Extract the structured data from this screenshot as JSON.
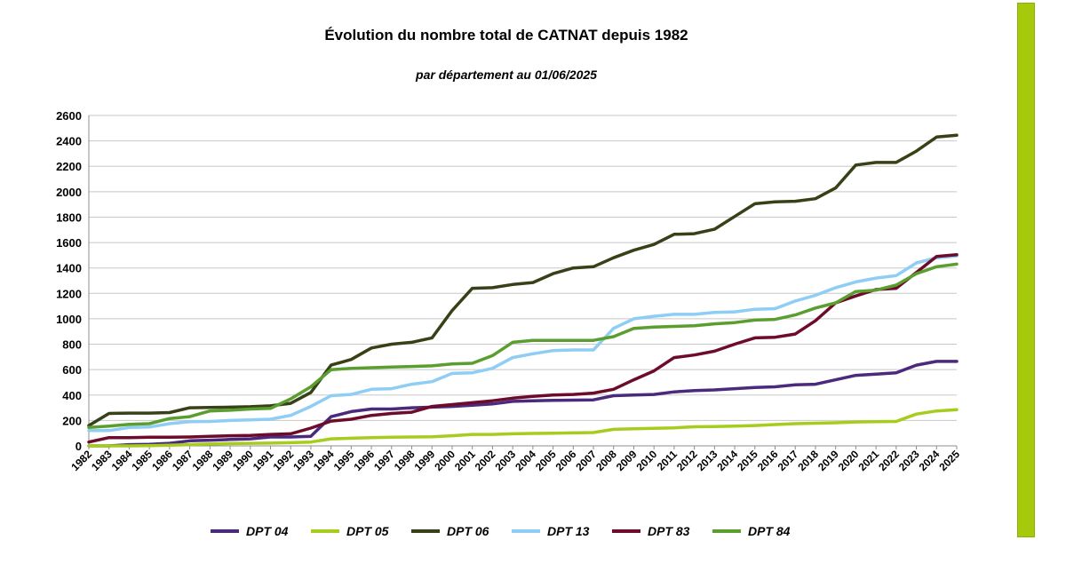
{
  "chart_data": {
    "type": "line",
    "title": "Évolution du nombre total de CATNAT depuis 1982",
    "subtitle": "par département au 01/06/2025",
    "xlabel": "",
    "ylabel": "",
    "ylim": [
      0,
      2600
    ],
    "yticks": [
      0,
      200,
      400,
      600,
      800,
      1000,
      1200,
      1400,
      1600,
      1800,
      2000,
      2200,
      2400,
      2600
    ],
    "grid": true,
    "legend_position": "bottom",
    "categories": [
      "1982",
      "1983",
      "1984",
      "1985",
      "1986",
      "1987",
      "1988",
      "1989",
      "1990",
      "1991",
      "1992",
      "1993",
      "1994",
      "1995",
      "1996",
      "1997",
      "1998",
      "1999",
      "2000",
      "2001",
      "2002",
      "2003",
      "2004",
      "2005",
      "2006",
      "2007",
      "2008",
      "2009",
      "2010",
      "2011",
      "2012",
      "2013",
      "2014",
      "2015",
      "2016",
      "2017",
      "2018",
      "2019",
      "2020",
      "2021",
      "2022",
      "2023",
      "2024",
      "2025"
    ],
    "series": [
      {
        "name": "DPT 04",
        "color": "#4b2a7e",
        "values": [
          0,
          0,
          10,
          12,
          20,
          40,
          45,
          50,
          55,
          70,
          70,
          75,
          230,
          270,
          290,
          290,
          300,
          305,
          310,
          320,
          330,
          350,
          355,
          358,
          360,
          362,
          395,
          400,
          405,
          425,
          435,
          440,
          450,
          460,
          465,
          480,
          485,
          520,
          555,
          565,
          575,
          635,
          665,
          665
        ]
      },
      {
        "name": "DPT 05",
        "color": "#a6cd1e",
        "values": [
          0,
          0,
          0,
          2,
          5,
          10,
          15,
          18,
          20,
          22,
          25,
          30,
          55,
          60,
          65,
          68,
          70,
          72,
          80,
          90,
          90,
          95,
          98,
          100,
          102,
          105,
          130,
          135,
          138,
          142,
          150,
          152,
          155,
          160,
          168,
          175,
          178,
          182,
          188,
          190,
          192,
          250,
          275,
          285
        ]
      },
      {
        "name": "DPT 06",
        "color": "#374117",
        "values": [
          160,
          255,
          258,
          258,
          262,
          300,
          302,
          305,
          308,
          315,
          335,
          420,
          635,
          680,
          770,
          800,
          815,
          850,
          1065,
          1240,
          1245,
          1270,
          1285,
          1355,
          1400,
          1410,
          1480,
          1540,
          1585,
          1665,
          1670,
          1705,
          1805,
          1905,
          1920,
          1925,
          1945,
          2030,
          2210,
          2230,
          2230,
          2320,
          2430,
          2445
        ]
      },
      {
        "name": "DPT 13",
        "color": "#8ecdf4",
        "values": [
          120,
          120,
          145,
          148,
          175,
          190,
          192,
          200,
          205,
          210,
          240,
          310,
          395,
          405,
          445,
          450,
          485,
          505,
          570,
          575,
          610,
          695,
          725,
          750,
          755,
          755,
          925,
          1000,
          1020,
          1035,
          1035,
          1050,
          1055,
          1075,
          1080,
          1140,
          1185,
          1245,
          1290,
          1320,
          1340,
          1440,
          1480,
          1495
        ]
      },
      {
        "name": "DPT 83",
        "color": "#6d0b2a",
        "values": [
          30,
          65,
          65,
          68,
          68,
          70,
          75,
          80,
          82,
          90,
          95,
          140,
          195,
          210,
          240,
          255,
          265,
          310,
          325,
          340,
          355,
          375,
          390,
          400,
          405,
          415,
          445,
          520,
          590,
          695,
          715,
          745,
          800,
          850,
          855,
          880,
          985,
          1125,
          1180,
          1230,
          1240,
          1365,
          1490,
          1505
        ]
      },
      {
        "name": "DPT 84",
        "color": "#5a9e2f",
        "values": [
          145,
          155,
          170,
          175,
          215,
          230,
          275,
          280,
          290,
          295,
          370,
          465,
          600,
          610,
          615,
          620,
          625,
          630,
          645,
          650,
          710,
          815,
          830,
          830,
          830,
          830,
          860,
          925,
          935,
          940,
          945,
          960,
          970,
          990,
          995,
          1030,
          1085,
          1125,
          1215,
          1225,
          1265,
          1355,
          1410,
          1430
        ]
      }
    ]
  }
}
